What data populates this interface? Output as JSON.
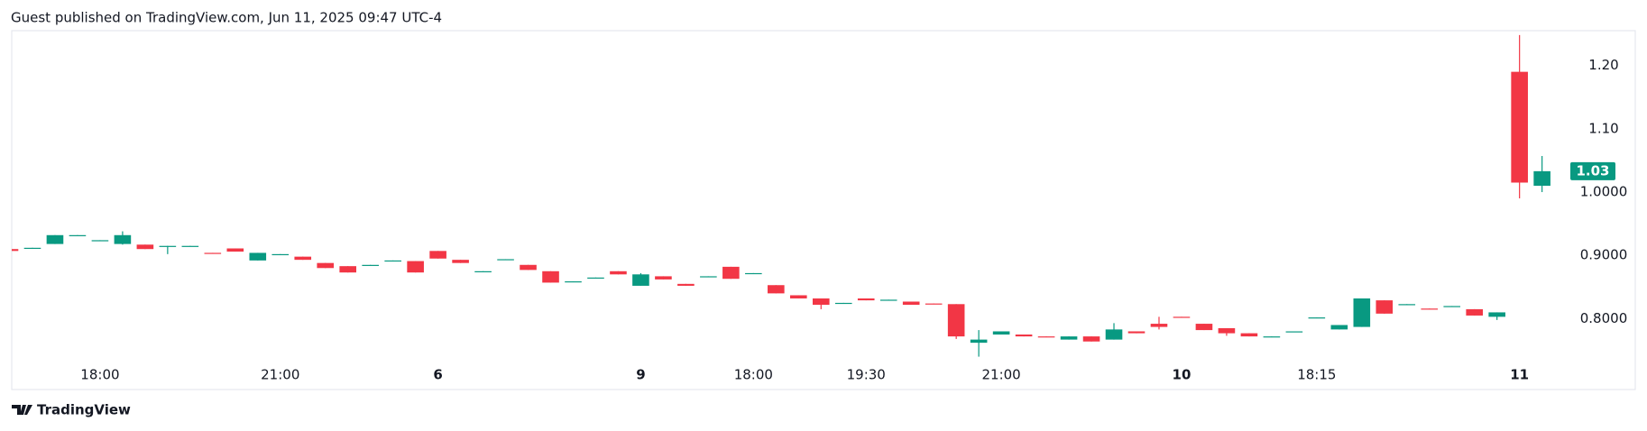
{
  "header": {
    "text": "Guest published on TradingView.com, Jun 11, 2025 09:47 UTC-4"
  },
  "footer": {
    "brand": "TradingView"
  },
  "chart_data": {
    "type": "candlestick",
    "categories": [
      null,
      null,
      null,
      null,
      "18:00",
      null,
      null,
      null,
      null,
      null,
      null,
      null,
      "21:00",
      null,
      null,
      null,
      null,
      null,
      null,
      "6",
      null,
      null,
      null,
      null,
      null,
      null,
      null,
      null,
      "9",
      null,
      null,
      null,
      null,
      "18:00",
      null,
      null,
      null,
      null,
      "19:30",
      null,
      null,
      null,
      null,
      null,
      "21:00",
      null,
      null,
      null,
      null,
      null,
      null,
      null,
      "10",
      null,
      null,
      null,
      null,
      null,
      "18:15",
      null,
      null,
      null,
      null,
      null,
      null,
      null,
      null,
      "11",
      null
    ],
    "series": [
      {
        "open": [
          0.91,
          0.911,
          0.918,
          0.931,
          0.923,
          0.918,
          0.917,
          0.914,
          0.914,
          0.904,
          0.911,
          0.892,
          0.901,
          0.898,
          0.888,
          0.883,
          0.884,
          0.891,
          0.891,
          0.907,
          0.893,
          0.874,
          0.893,
          0.885,
          0.875,
          0.858,
          0.864,
          0.875,
          0.852,
          0.867,
          0.855,
          0.866,
          0.882,
          0.871,
          0.853,
          0.837,
          0.832,
          0.824,
          0.832,
          0.829,
          0.827,
          0.824,
          0.823,
          0.762,
          0.775,
          0.775,
          0.772,
          0.767,
          0.772,
          0.767,
          0.78,
          0.792,
          0.803,
          0.792,
          0.785,
          0.777,
          0.771,
          0.779,
          0.801,
          0.783,
          0.787,
          0.829,
          0.822,
          0.816,
          0.819,
          0.815,
          0.803,
          1.19,
          1.01
        ],
        "high": [
          0.91,
          0.912,
          0.932,
          0.932,
          0.924,
          0.938,
          0.917,
          0.915,
          0.915,
          0.904,
          0.911,
          0.904,
          0.902,
          0.898,
          0.888,
          0.883,
          0.885,
          0.892,
          0.891,
          0.907,
          0.893,
          0.875,
          0.894,
          0.885,
          0.875,
          0.859,
          0.865,
          0.875,
          0.872,
          0.867,
          0.855,
          0.867,
          0.882,
          0.872,
          0.853,
          0.837,
          0.832,
          0.825,
          0.832,
          0.83,
          0.827,
          0.824,
          0.823,
          0.782,
          0.78,
          0.775,
          0.772,
          0.772,
          0.772,
          0.793,
          0.78,
          0.803,
          0.803,
          0.792,
          0.785,
          0.777,
          0.772,
          0.78,
          0.802,
          0.79,
          0.832,
          0.829,
          0.823,
          0.816,
          0.82,
          0.815,
          0.81,
          1.248,
          1.057
        ],
        "low": [
          0.907,
          0.911,
          0.918,
          0.931,
          0.923,
          0.917,
          0.91,
          0.902,
          0.914,
          0.903,
          0.906,
          0.892,
          0.901,
          0.893,
          0.88,
          0.873,
          0.884,
          0.891,
          0.873,
          0.895,
          0.888,
          0.874,
          0.893,
          0.877,
          0.857,
          0.858,
          0.864,
          0.87,
          0.852,
          0.862,
          0.852,
          0.866,
          0.863,
          0.871,
          0.84,
          0.832,
          0.815,
          0.824,
          0.829,
          0.829,
          0.822,
          0.823,
          0.768,
          0.74,
          0.775,
          0.772,
          0.771,
          0.767,
          0.764,
          0.767,
          0.777,
          0.783,
          0.802,
          0.782,
          0.773,
          0.772,
          0.771,
          0.779,
          0.801,
          0.783,
          0.787,
          0.808,
          0.822,
          0.815,
          0.819,
          0.805,
          0.798,
          0.99,
          1.0
        ],
        "close": [
          0.907,
          0.912,
          0.932,
          0.932,
          0.924,
          0.932,
          0.91,
          0.915,
          0.915,
          0.903,
          0.906,
          0.904,
          0.902,
          0.893,
          0.88,
          0.873,
          0.885,
          0.892,
          0.873,
          0.895,
          0.888,
          0.875,
          0.894,
          0.877,
          0.857,
          0.859,
          0.865,
          0.87,
          0.87,
          0.862,
          0.852,
          0.867,
          0.863,
          0.872,
          0.84,
          0.832,
          0.822,
          0.825,
          0.829,
          0.83,
          0.822,
          0.823,
          0.772,
          0.767,
          0.78,
          0.772,
          0.771,
          0.772,
          0.764,
          0.783,
          0.777,
          0.787,
          0.802,
          0.782,
          0.777,
          0.772,
          0.772,
          0.78,
          0.802,
          0.79,
          0.832,
          0.808,
          0.823,
          0.815,
          0.82,
          0.805,
          0.81,
          1.015,
          1.033
        ]
      }
    ],
    "up_color": "#089981",
    "down_color": "#f23645",
    "ylim": [
      0.728,
      1.255
    ],
    "yticks": [
      {
        "value": 1.2,
        "label": "1.20"
      },
      {
        "value": 1.1,
        "label": "1.10"
      },
      {
        "value": 1.0,
        "label": "1.0000"
      },
      {
        "value": 0.9,
        "label": "0.9000"
      },
      {
        "value": 0.8,
        "label": "0.8000"
      }
    ],
    "last_price": {
      "value": 1.033,
      "label": "1.03"
    }
  }
}
